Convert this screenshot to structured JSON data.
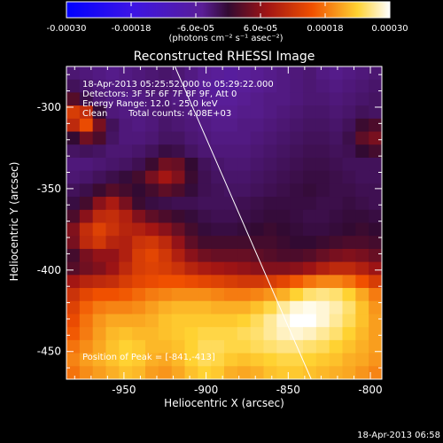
{
  "colors": {
    "background": "#000000",
    "text": "#ffffff",
    "limb_line": "#ffffff"
  },
  "colorbar": {
    "tick_labels": [
      "-0.00030",
      "-0.00018",
      "-6.0e-05",
      "6.0e-05",
      "0.00018",
      "0.00030"
    ],
    "tick_values": [
      -0.0003,
      -0.00018,
      -6e-05,
      6e-05,
      0.00018,
      0.0003
    ],
    "range": [
      -0.0003,
      0.0003
    ],
    "units_label": "(photons cm⁻² s⁻¹ asec⁻²)",
    "colormap": "blue-purple-red-yellow-white"
  },
  "title": "Reconstructed RHESSI Image",
  "annotations": {
    "time_range": "18-Apr-2013 05:25:52.000 to 05:29:22.000",
    "detectors": "Detectors: 3F 5F 6F 7F 8F 9F, Att 0",
    "energy_range": "Energy Range: 12.0 - 25.0 keV",
    "algorithm": "Clean",
    "total_counts": "Total counts: 4.08E+03",
    "peak": "Position of Peak = [-841,-413]"
  },
  "footer_timestamp": "18-Apr-2013 06:58",
  "chart_data": {
    "type": "heatmap",
    "xlabel": "Heliocentric X (arcsec)",
    "ylabel": "Heliocentric Y (arcsec)",
    "xlim": [
      -985,
      -793
    ],
    "ylim": [
      -467,
      -275
    ],
    "x_ticks": [
      -950,
      -900,
      -850,
      -800
    ],
    "x_tick_labels": [
      "-950",
      "-900",
      "-850",
      "-800"
    ],
    "y_ticks": [
      -450,
      -400,
      -350,
      -300
    ],
    "y_tick_labels": [
      "-450",
      "-400",
      "-350",
      "-300"
    ],
    "peak_position": [
      -841,
      -413
    ],
    "limb_line": [
      [
        -919,
        -275
      ],
      [
        -836,
        -467
      ]
    ],
    "grid_shape": [
      24,
      24
    ],
    "z_min": -0.0003,
    "z_max": 0.0003,
    "z_rows_top_to_bottom": [
      [
        -0.16,
        -0.18,
        -0.2,
        -0.22,
        -0.2,
        -0.18,
        -0.16,
        -0.14,
        -0.16,
        -0.2,
        -0.24,
        -0.26,
        -0.28,
        -0.26,
        -0.24,
        -0.22,
        -0.2,
        -0.18,
        -0.16,
        -0.2,
        -0.22,
        -0.2,
        -0.18,
        -0.16
      ],
      [
        -0.1,
        -0.14,
        -0.18,
        -0.2,
        -0.2,
        -0.18,
        -0.16,
        -0.16,
        -0.18,
        -0.22,
        -0.26,
        -0.28,
        -0.28,
        -0.26,
        -0.24,
        -0.22,
        -0.2,
        -0.18,
        -0.16,
        -0.18,
        -0.2,
        -0.18,
        -0.16,
        -0.14
      ],
      [
        0.08,
        -0.06,
        -0.16,
        -0.2,
        -0.22,
        -0.2,
        -0.18,
        -0.18,
        -0.2,
        -0.22,
        -0.24,
        -0.26,
        -0.26,
        -0.24,
        -0.22,
        -0.2,
        -0.2,
        -0.18,
        -0.16,
        -0.16,
        -0.18,
        -0.16,
        -0.14,
        -0.12
      ],
      [
        0.42,
        0.36,
        -0.02,
        -0.18,
        -0.2,
        -0.2,
        -0.18,
        -0.16,
        -0.18,
        -0.2,
        -0.22,
        -0.24,
        -0.24,
        -0.22,
        -0.22,
        -0.2,
        -0.18,
        -0.16,
        -0.14,
        -0.14,
        -0.16,
        -0.14,
        -0.1,
        -0.12
      ],
      [
        0.34,
        0.48,
        0.16,
        -0.1,
        -0.18,
        -0.2,
        -0.18,
        -0.14,
        -0.16,
        -0.18,
        -0.2,
        -0.22,
        -0.22,
        -0.2,
        -0.2,
        -0.18,
        -0.16,
        -0.14,
        -0.12,
        -0.12,
        -0.14,
        -0.1,
        0.02,
        0.06
      ],
      [
        0.0,
        0.14,
        0.06,
        -0.12,
        -0.18,
        -0.18,
        -0.16,
        -0.12,
        -0.12,
        -0.16,
        -0.18,
        -0.2,
        -0.2,
        -0.2,
        -0.18,
        -0.16,
        -0.14,
        -0.12,
        -0.1,
        -0.1,
        -0.12,
        -0.06,
        0.1,
        0.16
      ],
      [
        -0.12,
        -0.1,
        -0.12,
        -0.16,
        -0.16,
        -0.14,
        -0.1,
        -0.04,
        -0.06,
        -0.12,
        -0.16,
        -0.18,
        -0.18,
        -0.18,
        -0.16,
        -0.14,
        -0.12,
        -0.1,
        -0.08,
        -0.08,
        -0.1,
        -0.08,
        0.0,
        0.04
      ],
      [
        -0.18,
        -0.18,
        -0.16,
        -0.14,
        -0.12,
        -0.08,
        0.02,
        0.14,
        0.12,
        0.0,
        -0.1,
        -0.14,
        -0.16,
        -0.16,
        -0.14,
        -0.12,
        -0.1,
        -0.08,
        -0.06,
        -0.06,
        -0.08,
        -0.1,
        -0.1,
        -0.1
      ],
      [
        -0.16,
        -0.14,
        -0.1,
        -0.06,
        -0.02,
        0.04,
        0.16,
        0.26,
        0.18,
        0.02,
        -0.08,
        -0.12,
        -0.14,
        -0.14,
        -0.12,
        -0.1,
        -0.08,
        -0.06,
        -0.04,
        -0.04,
        -0.06,
        -0.08,
        -0.1,
        -0.1
      ],
      [
        -0.1,
        -0.06,
        0.02,
        0.08,
        0.04,
        0.0,
        0.04,
        0.1,
        0.06,
        -0.02,
        -0.08,
        -0.1,
        -0.12,
        -0.12,
        -0.1,
        -0.08,
        -0.06,
        -0.04,
        -0.02,
        -0.04,
        -0.06,
        -0.06,
        -0.08,
        -0.08
      ],
      [
        -0.04,
        0.04,
        0.2,
        0.28,
        0.16,
        0.02,
        -0.04,
        -0.06,
        -0.08,
        -0.08,
        -0.1,
        -0.1,
        -0.1,
        -0.08,
        -0.06,
        -0.04,
        -0.04,
        -0.04,
        -0.04,
        -0.06,
        -0.06,
        -0.04,
        -0.06,
        -0.08
      ],
      [
        0.06,
        0.2,
        0.34,
        0.36,
        0.3,
        0.18,
        0.1,
        0.06,
        0.02,
        -0.02,
        -0.06,
        -0.08,
        -0.08,
        -0.06,
        -0.04,
        -0.02,
        -0.02,
        -0.04,
        -0.06,
        -0.06,
        -0.04,
        -0.02,
        -0.02,
        -0.04
      ],
      [
        0.18,
        0.36,
        0.44,
        0.38,
        0.32,
        0.3,
        0.26,
        0.2,
        0.12,
        0.04,
        -0.02,
        -0.04,
        -0.04,
        -0.02,
        0.0,
        0.02,
        0.0,
        -0.02,
        -0.04,
        -0.04,
        -0.02,
        0.0,
        0.02,
        0.0
      ],
      [
        0.16,
        0.34,
        0.4,
        0.32,
        0.3,
        0.38,
        0.4,
        0.34,
        0.22,
        0.1,
        0.04,
        0.04,
        0.04,
        0.04,
        0.04,
        0.04,
        0.02,
        0.0,
        0.0,
        0.02,
        0.04,
        0.06,
        0.06,
        0.04
      ],
      [
        0.04,
        0.16,
        0.22,
        0.22,
        0.3,
        0.42,
        0.46,
        0.4,
        0.3,
        0.2,
        0.14,
        0.12,
        0.12,
        0.12,
        0.1,
        0.08,
        0.06,
        0.06,
        0.08,
        0.12,
        0.16,
        0.18,
        0.16,
        0.12
      ],
      [
        0.08,
        0.14,
        0.18,
        0.24,
        0.34,
        0.42,
        0.44,
        0.42,
        0.38,
        0.32,
        0.28,
        0.26,
        0.24,
        0.22,
        0.2,
        0.18,
        0.18,
        0.2,
        0.24,
        0.3,
        0.34,
        0.34,
        0.3,
        0.24
      ],
      [
        0.26,
        0.32,
        0.34,
        0.36,
        0.42,
        0.46,
        0.48,
        0.5,
        0.5,
        0.48,
        0.46,
        0.44,
        0.42,
        0.4,
        0.4,
        0.42,
        0.46,
        0.52,
        0.58,
        0.62,
        0.62,
        0.58,
        0.5,
        0.42
      ],
      [
        0.38,
        0.46,
        0.5,
        0.5,
        0.52,
        0.56,
        0.6,
        0.62,
        0.64,
        0.64,
        0.64,
        0.62,
        0.6,
        0.6,
        0.62,
        0.66,
        0.72,
        0.8,
        0.86,
        0.88,
        0.86,
        0.8,
        0.7,
        0.6
      ],
      [
        0.44,
        0.54,
        0.6,
        0.62,
        0.62,
        0.64,
        0.68,
        0.72,
        0.74,
        0.74,
        0.74,
        0.72,
        0.72,
        0.72,
        0.76,
        0.82,
        0.9,
        0.96,
        0.98,
        0.96,
        0.92,
        0.86,
        0.76,
        0.66
      ],
      [
        0.48,
        0.58,
        0.66,
        0.7,
        0.7,
        0.7,
        0.72,
        0.76,
        0.78,
        0.78,
        0.78,
        0.78,
        0.78,
        0.8,
        0.84,
        0.9,
        0.96,
        1.0,
        1.0,
        0.96,
        0.9,
        0.84,
        0.76,
        0.68
      ],
      [
        0.52,
        0.6,
        0.68,
        0.74,
        0.76,
        0.74,
        0.74,
        0.76,
        0.78,
        0.8,
        0.82,
        0.82,
        0.82,
        0.84,
        0.86,
        0.9,
        0.94,
        0.96,
        0.94,
        0.9,
        0.86,
        0.8,
        0.74,
        0.68
      ],
      [
        0.58,
        0.64,
        0.7,
        0.76,
        0.8,
        0.78,
        0.74,
        0.74,
        0.76,
        0.8,
        0.84,
        0.84,
        0.82,
        0.82,
        0.84,
        0.86,
        0.88,
        0.88,
        0.86,
        0.84,
        0.8,
        0.76,
        0.72,
        0.68
      ],
      [
        0.62,
        0.68,
        0.72,
        0.76,
        0.8,
        0.78,
        0.72,
        0.7,
        0.74,
        0.8,
        0.84,
        0.82,
        0.78,
        0.76,
        0.78,
        0.8,
        0.82,
        0.82,
        0.8,
        0.78,
        0.76,
        0.72,
        0.7,
        0.66
      ],
      [
        0.58,
        0.64,
        0.68,
        0.72,
        0.76,
        0.74,
        0.68,
        0.66,
        0.7,
        0.76,
        0.8,
        0.78,
        0.72,
        0.7,
        0.72,
        0.76,
        0.78,
        0.78,
        0.76,
        0.74,
        0.72,
        0.7,
        0.66,
        0.62
      ]
    ]
  }
}
